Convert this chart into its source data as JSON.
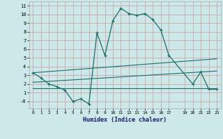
{
  "xlabel": "Humidex (Indice chaleur)",
  "background_color": "#cce8e8",
  "grid_color": "#c8a8a8",
  "line_color": "#1a6e6a",
  "xlim": [
    -0.5,
    23.5
  ],
  "ylim": [
    -0.8,
    11.5
  ],
  "x_ticks": [
    0,
    1,
    2,
    3,
    4,
    5,
    6,
    7,
    8,
    9,
    10,
    11,
    12,
    13,
    14,
    15,
    16,
    17,
    19,
    20,
    21,
    22,
    23
  ],
  "y_ticks": [
    0,
    1,
    2,
    3,
    4,
    5,
    6,
    7,
    8,
    9,
    10,
    11
  ],
  "y_tick_labels": [
    "-0",
    "1",
    "2",
    "3",
    "4",
    "5",
    "6",
    "7",
    "8",
    "9",
    "10",
    "11"
  ],
  "series1_x": [
    0,
    1,
    2,
    3,
    4,
    5,
    6,
    7,
    8,
    9,
    10,
    11,
    12,
    13,
    14,
    15,
    16,
    17,
    20,
    21,
    22,
    23
  ],
  "series1_y": [
    3.3,
    2.7,
    2.0,
    1.7,
    1.3,
    0.0,
    0.3,
    -0.3,
    7.9,
    5.3,
    9.3,
    10.7,
    10.1,
    9.9,
    10.1,
    9.4,
    8.2,
    5.3,
    2.0,
    3.4,
    1.4,
    1.4
  ],
  "series2_x": [
    0,
    23
  ],
  "series2_y": [
    3.3,
    4.9
  ],
  "series3_x": [
    0,
    23
  ],
  "series3_y": [
    2.2,
    3.5
  ],
  "series4_x": [
    0,
    17,
    23
  ],
  "series4_y": [
    1.5,
    1.5,
    1.5
  ]
}
